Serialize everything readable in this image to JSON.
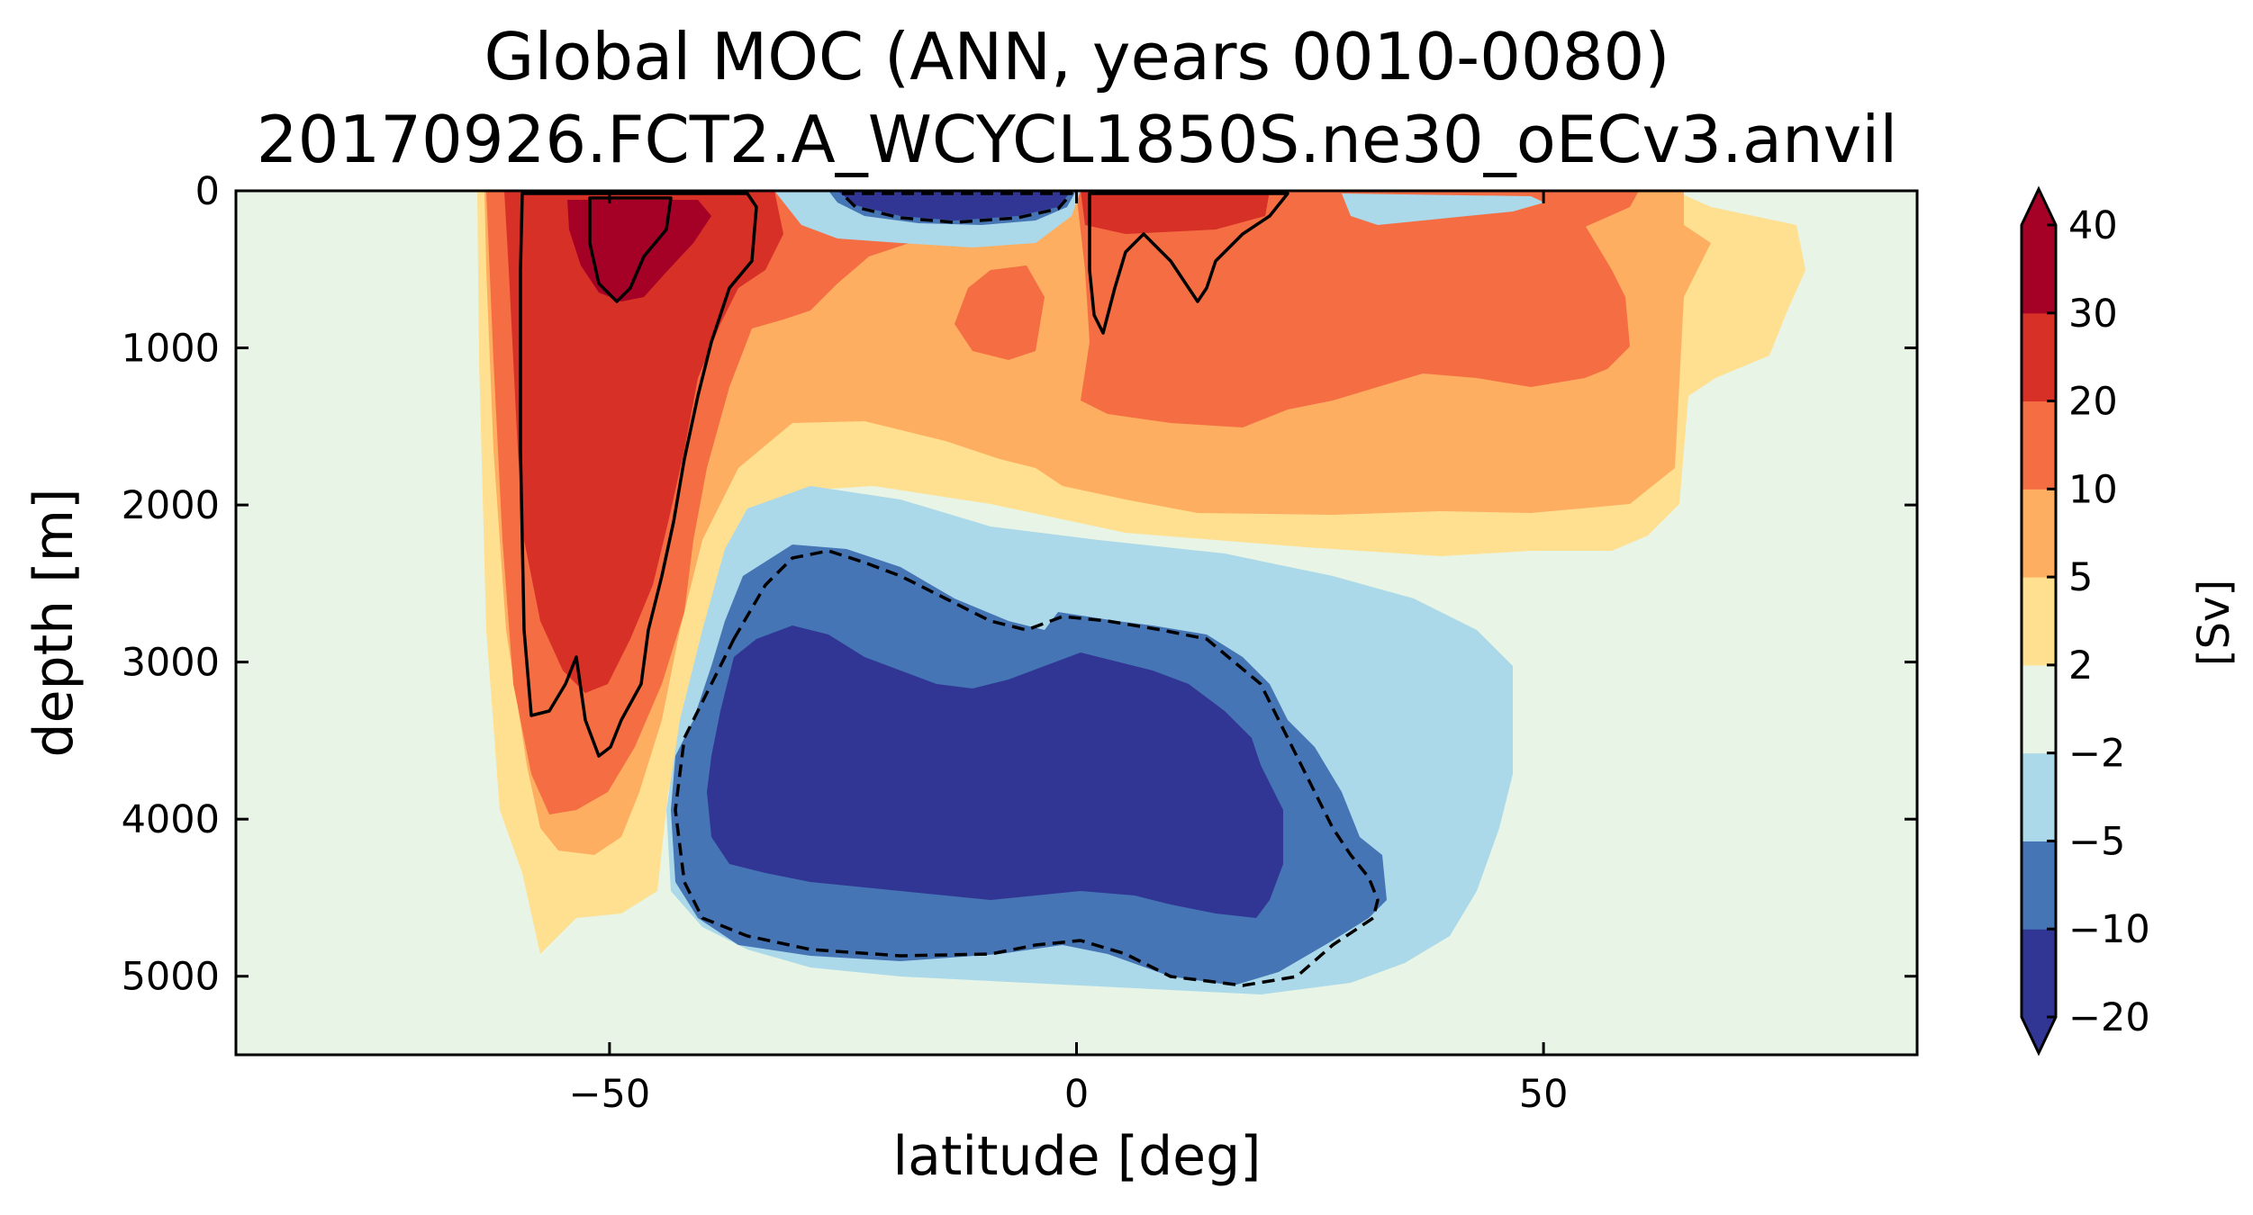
{
  "chart_data": {
    "type": "filled-contour",
    "title": "Global MOC (ANN, years 0010-0080)",
    "subtitle": "20170926.FCT2.A_WCYCL1850S.ne30_oECv3.anvil",
    "xlabel": "latitude [deg]",
    "ylabel": "depth [m]",
    "xlim": [
      -90,
      90
    ],
    "ylim": [
      5500,
      0
    ],
    "y_inverted": true,
    "x_ticks": [
      -50,
      0,
      50
    ],
    "x_tick_labels": [
      "−50",
      "0",
      "50"
    ],
    "y_ticks": [
      0,
      1000,
      2000,
      3000,
      4000,
      5000
    ],
    "y_tick_labels": [
      "0",
      "1000",
      "2000",
      "3000",
      "4000",
      "5000"
    ],
    "colorbar": {
      "label": "[Sv]",
      "levels": [
        -20,
        -10,
        -5,
        -2,
        2,
        5,
        10,
        20,
        30,
        40
      ],
      "tick_labels": [
        "−20",
        "−10",
        "−5",
        "−2",
        "2",
        "5",
        "10",
        "20",
        "30",
        "40"
      ],
      "band_colors": [
        "#313695",
        "#4575b4",
        "#abd9e9",
        "#e8f4e5",
        "#fee090",
        "#fdae61",
        "#f46d43",
        "#d73027",
        "#a50026"
      ],
      "extend": "both",
      "under_color": "#313695",
      "over_color": "#a50026"
    },
    "background_color": "#e8f4e5",
    "features": [
      {
        "sign": "positive",
        "description_values": {
          "lat_center": -52,
          "depth_core": [
            0,
            700
          ],
          "max_level": 30
        }
      },
      {
        "sign": "positive",
        "description_values": {
          "lat_center": 10,
          "depth_core": [
            0,
            1000
          ],
          "max_level": 20
        }
      },
      {
        "sign": "negative",
        "description_values": {
          "lat_center": -8,
          "depth_core": [
            0,
            200
          ],
          "min_level": -20
        }
      },
      {
        "sign": "negative",
        "description_values": {
          "lat_center": -10,
          "depth_core": [
            3000,
            4500
          ],
          "min_level": -20
        }
      }
    ],
    "contour_lines": [
      {
        "value": 20,
        "style": "solid"
      },
      {
        "value": -10,
        "style": "dashed"
      }
    ]
  }
}
